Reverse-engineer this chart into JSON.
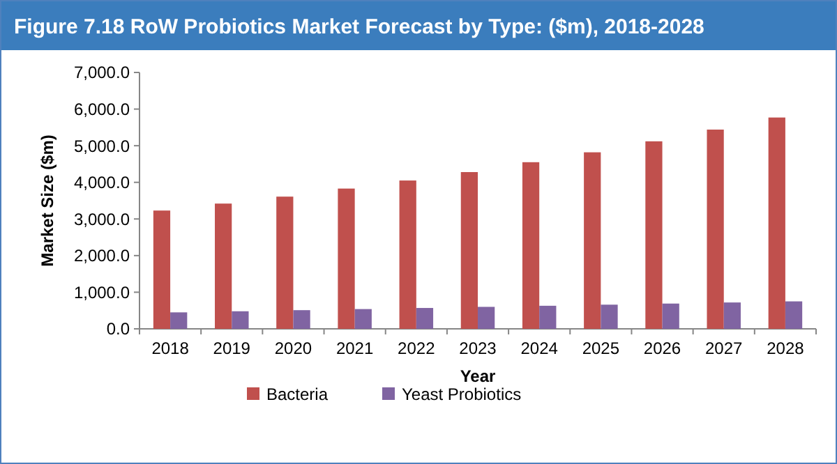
{
  "chart_data": {
    "type": "bar",
    "title": "Figure 7.18 RoW Probiotics Market Forecast by Type: ($m), 2018-2028",
    "xlabel": "Year",
    "ylabel": "Market Size ($m)",
    "categories": [
      "2018",
      "2019",
      "2020",
      "2021",
      "2022",
      "2023",
      "2024",
      "2025",
      "2026",
      "2027",
      "2028"
    ],
    "series": [
      {
        "name": "Bacteria",
        "color": "#c0504d",
        "values": [
          3230,
          3420,
          3610,
          3830,
          4050,
          4280,
          4550,
          4820,
          5120,
          5440,
          5770
        ]
      },
      {
        "name": "Yeast Probiotics",
        "color": "#8064a2",
        "values": [
          450,
          480,
          510,
          540,
          570,
          600,
          630,
          660,
          690,
          720,
          750
        ]
      }
    ],
    "ylim": [
      0,
      7000
    ],
    "yticks": [
      {
        "value": 0,
        "label": "0.0"
      },
      {
        "value": 1000,
        "label": "1,000.0"
      },
      {
        "value": 2000,
        "label": "2,000.0"
      },
      {
        "value": 3000,
        "label": "3,000.0"
      },
      {
        "value": 4000,
        "label": "4,000.0"
      },
      {
        "value": 5000,
        "label": "5,000.0"
      },
      {
        "value": 6000,
        "label": "6,000.0"
      },
      {
        "value": 7000,
        "label": "7,000.0"
      }
    ],
    "legend": "bottom"
  }
}
